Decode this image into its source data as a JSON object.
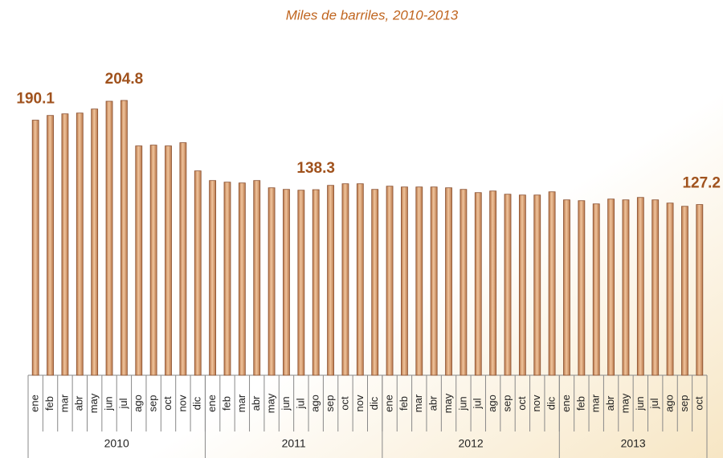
{
  "chart_data": {
    "type": "bar",
    "title": "Miles de barriles, 2010-2013",
    "color": "#dca274",
    "groups": [
      {
        "name": "2010",
        "categories": [
          "ene",
          "feb",
          "mar",
          "abr",
          "may",
          "jun",
          "jul",
          "ago",
          "sep",
          "oct",
          "nov",
          "dic"
        ],
        "values": [
          190.1,
          193.6,
          194.8,
          195.4,
          198.4,
          204.2,
          204.8,
          170.9,
          171.5,
          170.9,
          173.3,
          152.3
        ],
        "value_labels": [
          "190.1",
          null,
          null,
          null,
          null,
          null,
          "204.8",
          null,
          null,
          null,
          null,
          null
        ]
      },
      {
        "name": "2011",
        "categories": [
          "ene",
          "feb",
          "mar",
          "abr",
          "may",
          "jun",
          "jul",
          "ago",
          "sep",
          "oct",
          "nov",
          "dic"
        ],
        "values": [
          145.1,
          143.9,
          143.3,
          145.1,
          139.7,
          138.5,
          137.9,
          138.3,
          141.5,
          142.7,
          142.7,
          138.5
        ],
        "value_labels": [
          null,
          null,
          null,
          null,
          null,
          null,
          null,
          "138.3",
          null,
          null,
          null,
          null
        ]
      },
      {
        "name": "2012",
        "categories": [
          "ene",
          "feb",
          "mar",
          "abr",
          "may",
          "jun",
          "jul",
          "ago",
          "sep",
          "oct",
          "nov",
          "dic"
        ],
        "values": [
          140.9,
          140.3,
          140.3,
          140.3,
          139.7,
          138.5,
          136.1,
          137.3,
          134.9,
          134.3,
          134.3,
          136.7
        ],
        "value_labels": [
          null,
          null,
          null,
          null,
          null,
          null,
          null,
          null,
          null,
          null,
          null,
          null
        ]
      },
      {
        "name": "2013",
        "categories": [
          "ene",
          "feb",
          "mar",
          "abr",
          "may",
          "jun",
          "jul",
          "ago",
          "sep",
          "oct"
        ],
        "values": [
          130.7,
          130.1,
          127.7,
          131.3,
          130.7,
          132.5,
          130.7,
          128.3,
          125.9,
          127.2
        ],
        "value_labels": [
          null,
          null,
          null,
          null,
          null,
          null,
          null,
          null,
          null,
          "127.2"
        ]
      }
    ]
  }
}
